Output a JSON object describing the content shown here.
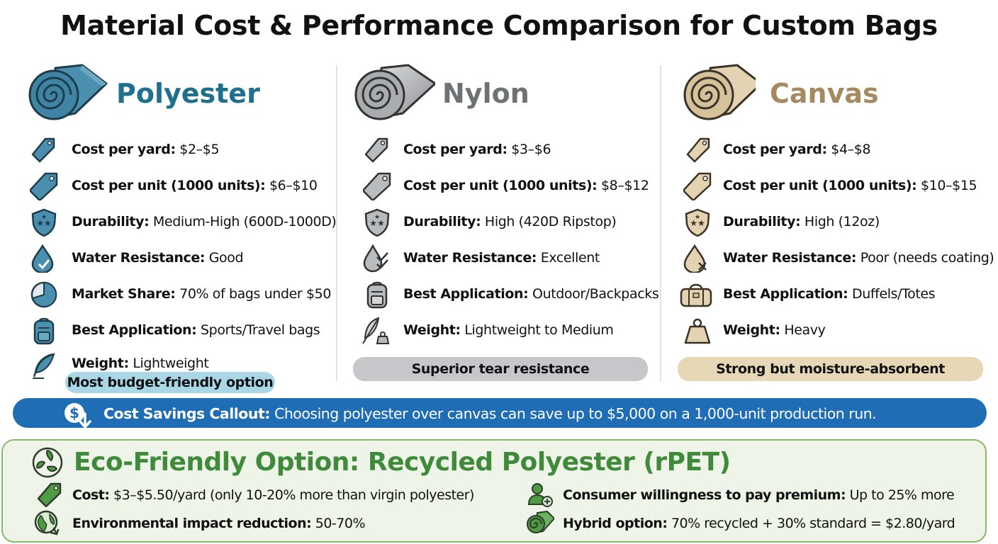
{
  "title": "Material Cost & Performance Comparison for Custom Bags",
  "colors": {
    "polyester": "#1f6f8f",
    "nylon": "#6f7275",
    "canvas": "#a68a5f",
    "callout": "#1e6db5",
    "eco": "#3f8a3b"
  },
  "materials": [
    {
      "name": "Polyester",
      "rows": [
        {
          "icon": "price-tag-icon",
          "key": "Cost per yard:",
          "value": " $2–$5"
        },
        {
          "icon": "price-tag-icon",
          "key": "Cost per unit (1000 units):",
          "value": " $6–$10"
        },
        {
          "icon": "shield-stars-icon",
          "key": "Durability:",
          "value": " Medium-High (600D-1000D)"
        },
        {
          "icon": "water-drop-check-icon",
          "key": "Water Resistance:",
          "value": " Good"
        },
        {
          "icon": "pie-chart-icon",
          "key": "Market Share:",
          "value": " 70% of bags under $50"
        },
        {
          "icon": "backpack-icon",
          "key": "Best Application:",
          "value": " Sports/Travel bags"
        },
        {
          "icon": "feather-icon",
          "key": "Weight:",
          "value": " Lightweight"
        }
      ],
      "pill": "Most budget-friendly option"
    },
    {
      "name": "Nylon",
      "rows": [
        {
          "icon": "price-tag-icon",
          "key": "Cost per yard:",
          "value": " $3–$6"
        },
        {
          "icon": "price-tag-icon",
          "key": "Cost per unit (1000 units):",
          "value": " $8–$12"
        },
        {
          "icon": "shield-stars-icon",
          "key": "Durability:",
          "value": " High (420D Ripstop)"
        },
        {
          "icon": "water-drops-check-icon",
          "key": "Water Resistance:",
          "value": " Excellent"
        },
        {
          "icon": "backpack-icon",
          "key": "Best Application:",
          "value": " Outdoor/Backpacks"
        },
        {
          "icon": "feather-weight-icon",
          "key": "Weight:",
          "value": " Lightweight to Medium"
        }
      ],
      "pill": "Superior tear resistance"
    },
    {
      "name": "Canvas",
      "rows": [
        {
          "icon": "price-tag-icon",
          "key": "Cost per yard:",
          "value": " $4–$8"
        },
        {
          "icon": "price-tag-icon",
          "key": "Cost per unit (1000 units):",
          "value": " $10–$15"
        },
        {
          "icon": "shield-stars-icon",
          "key": "Durability:",
          "value": " High (12oz)"
        },
        {
          "icon": "water-drop-x-icon",
          "key": "Water Resistance:",
          "value": " Poor (needs coating)"
        },
        {
          "icon": "duffel-bag-icon",
          "key": "Best Application:",
          "value": " Duffels/Totes"
        },
        {
          "icon": "weight-icon",
          "key": "Weight:",
          "value": " Heavy"
        }
      ],
      "pill": "Strong but moisture-absorbent"
    }
  ],
  "callout": {
    "icon": "dollar-down-icon",
    "key": "Cost Savings Callout:",
    "value": " Choosing polyester over canvas can save up to $5,000 on a 1,000-unit production run."
  },
  "eco": {
    "icon": "recycle-leaves-icon",
    "title": "Eco-Friendly Option: Recycled Polyester (rPET)",
    "items": [
      {
        "icon": "price-tag-icon",
        "key": "Cost:",
        "value": " $3–$5.50/yard (only 10-20% more than virgin polyester)"
      },
      {
        "icon": "globe-recycle-icon",
        "key": "Environmental impact reduction:",
        "value": " 50-70%"
      },
      {
        "icon": "user-plus-icon",
        "key": "Consumer willingness to pay premium:",
        "value": " Up to 25% more"
      },
      {
        "icon": "fabric-roll-icon",
        "key": "Hybrid option:",
        "value": " 70% recycled + 30% standard = $2.80/yard"
      }
    ]
  }
}
